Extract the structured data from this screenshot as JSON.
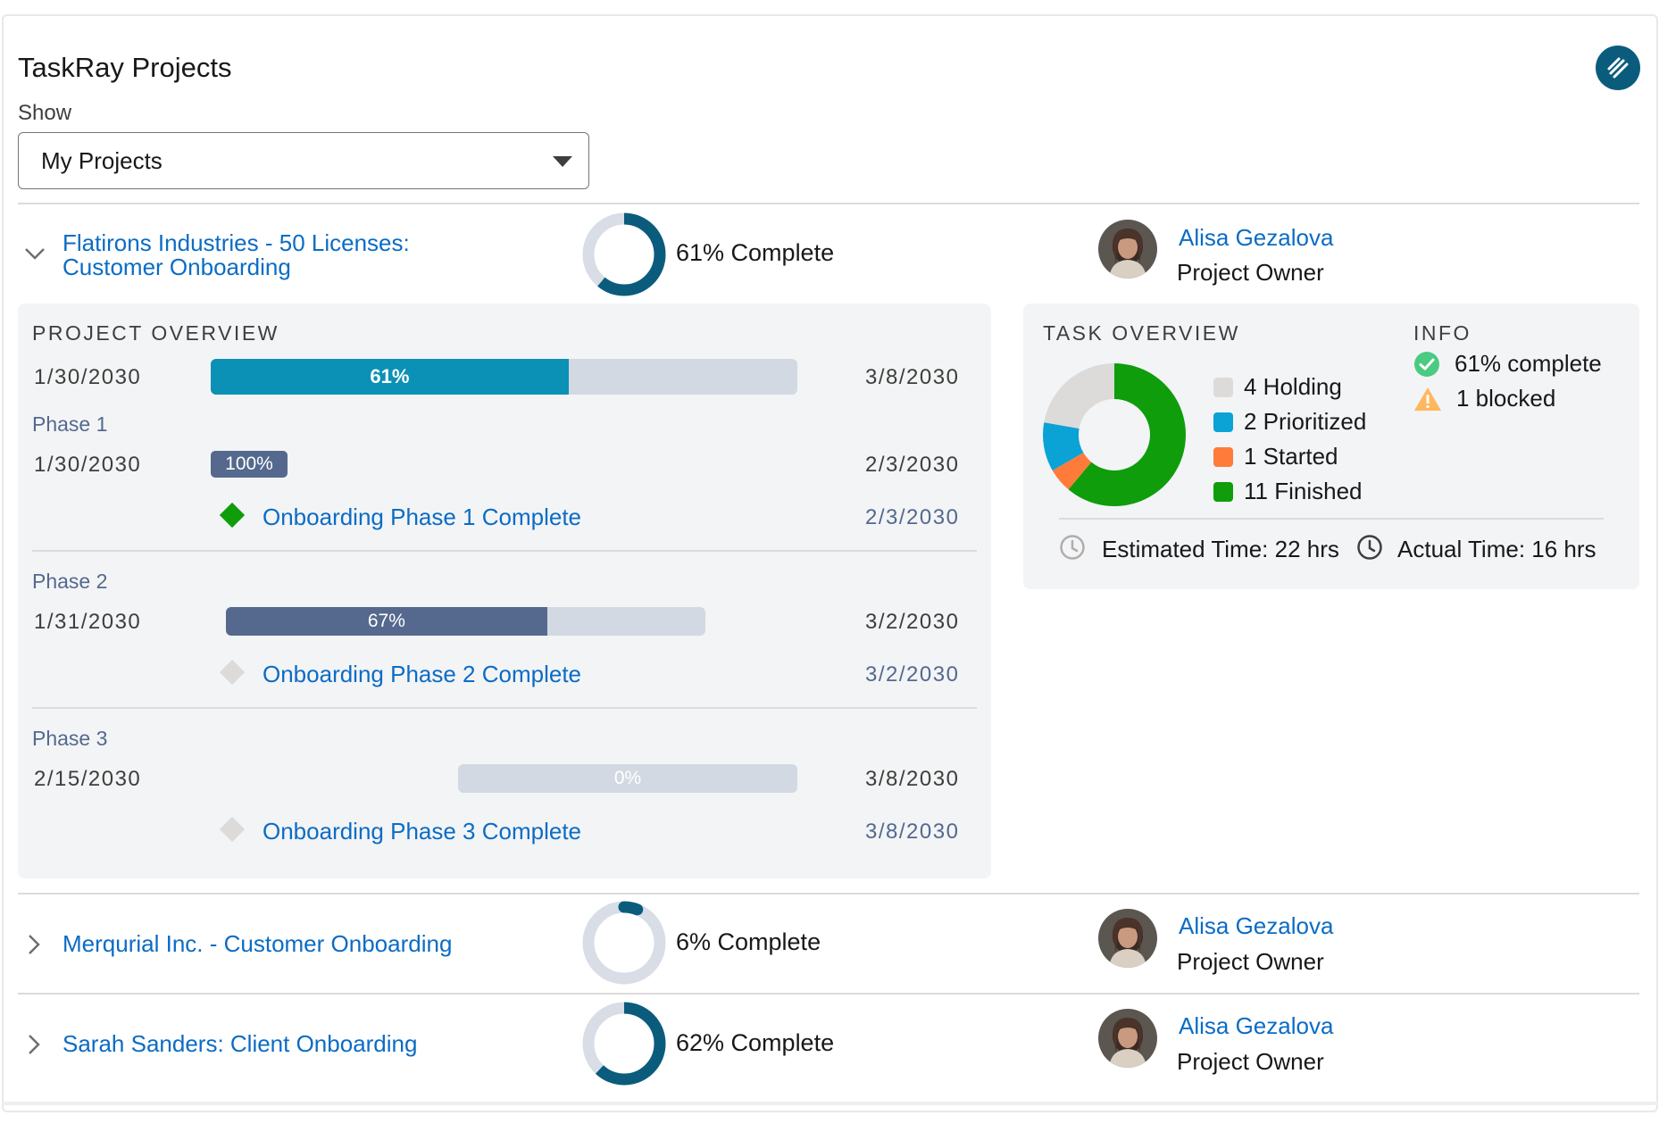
{
  "app": {
    "title": "TaskRay Projects"
  },
  "filter": {
    "label": "Show",
    "selected": "My Projects"
  },
  "projects": [
    {
      "name": "Flatirons Industries - 50 Licenses: Customer Onboarding",
      "name_line1": "Flatirons Industries - 50 Licenses:",
      "name_line2": "Customer Onboarding",
      "percent": 61,
      "percent_label": "61% Complete",
      "owner_name": "Alisa Gezalova",
      "owner_role": "Project Owner",
      "expanded": true
    },
    {
      "name": "Merqurial Inc. - Customer Onboarding",
      "percent": 6,
      "percent_label": "6% Complete",
      "owner_name": "Alisa Gezalova",
      "owner_role": "Project Owner",
      "expanded": false
    },
    {
      "name": "Sarah Sanders: Client Onboarding",
      "percent": 62,
      "percent_label": "62% Complete",
      "owner_name": "Alisa Gezalova",
      "owner_role": "Project Owner",
      "expanded": false
    }
  ],
  "project_overview": {
    "heading": "PROJECT OVERVIEW",
    "start": "1/30/2030",
    "end": "3/8/2030",
    "percent": 61,
    "percent_label": "61%",
    "phases": [
      {
        "name": "Phase 1",
        "start": "1/30/2030",
        "end": "2/3/2030",
        "percent": 100,
        "percent_label": "100%",
        "milestone": "Onboarding Phase 1 Complete",
        "milestone_date": "2/3/2030",
        "milestone_done": true
      },
      {
        "name": "Phase 2",
        "start": "1/31/2030",
        "end": "3/2/2030",
        "percent": 67,
        "percent_label": "67%",
        "milestone": "Onboarding Phase 2 Complete",
        "milestone_date": "3/2/2030",
        "milestone_done": false
      },
      {
        "name": "Phase 3",
        "start": "2/15/2030",
        "end": "3/8/2030",
        "percent": 0,
        "percent_label": "0%",
        "milestone": "Onboarding Phase 3 Complete",
        "milestone_date": "3/8/2030",
        "milestone_done": false
      }
    ]
  },
  "task_overview": {
    "heading": "TASK OVERVIEW",
    "legend": [
      {
        "count": 4,
        "label": "4 Holding",
        "color": "#dddbda"
      },
      {
        "count": 2,
        "label": "2 Prioritized",
        "color": "#0ba2d6"
      },
      {
        "count": 1,
        "label": "1 Started",
        "color": "#fe7b3a"
      },
      {
        "count": 11,
        "label": "11 Finished",
        "color": "#0f9d0b"
      }
    ],
    "estimated": "Estimated Time: 22 hrs",
    "actual": "Actual Time: 16 hrs"
  },
  "info": {
    "heading": "INFO",
    "complete": "61% complete",
    "blocked": "1 blocked"
  },
  "colors": {
    "accent": "#0b5c7c",
    "link": "#0b6cc4",
    "progress_main": "#0b91b5",
    "progress_phase": "#54698d",
    "milestone_done": "#0f9d0b",
    "milestone_pending": "#dddbda",
    "success": "#4bca81",
    "warning": "#ffb75d"
  }
}
